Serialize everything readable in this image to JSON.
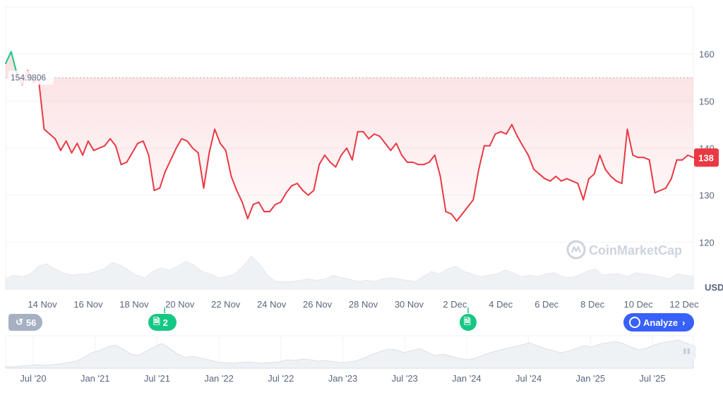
{
  "chart_data": {
    "type": "line",
    "y_unit": "USD",
    "ylim": [
      110,
      170
    ],
    "y_ticks": [
      "160",
      "150",
      "140",
      "130",
      "120"
    ],
    "reference_value": "154.9806",
    "current_value": "138",
    "x_tick_labels": [
      "14 Nov",
      "16 Nov",
      "18 Nov",
      "20 Nov",
      "22 Nov",
      "24 Nov",
      "26 Nov",
      "28 Nov",
      "30 Nov",
      "2 Dec",
      "4 Dec",
      "6 Dec",
      "8 Dec",
      "10 Dec",
      "12 Dec"
    ],
    "navigator_labels": [
      "Jul '20",
      "Jan '21",
      "Jul '21",
      "Jan '22",
      "Jul '22",
      "Jan '23",
      "Jul '23",
      "Jan '24",
      "Jul '24",
      "Jan '25",
      "Jul '25"
    ],
    "series": [
      {
        "x_start": "2025-11-13",
        "x_end": "2025-12-13",
        "values": [
          158,
          160.5,
          156,
          153.5,
          156.5,
          154,
          154.5,
          144,
          143,
          142,
          139.5,
          141.5,
          139,
          141,
          138.5,
          141.5,
          139.5,
          140,
          140.5,
          142,
          140.5,
          136.5,
          137,
          139,
          141,
          141.5,
          138.5,
          131,
          131.5,
          135,
          137.5,
          140,
          142,
          141.5,
          140,
          139,
          131.5,
          139,
          144,
          141,
          139.5,
          134,
          131,
          128.5,
          125,
          128,
          128.5,
          126.5,
          126.5,
          128,
          128.5,
          130.5,
          132,
          132.5,
          131,
          130,
          131,
          136.5,
          138.5,
          137,
          136,
          138.5,
          140,
          137.5,
          143.5,
          143.5,
          142,
          143,
          142.5,
          141,
          139.5,
          141,
          138.5,
          137,
          137,
          136.5,
          136.5,
          137,
          138.5,
          134,
          126.5,
          126,
          124.5,
          126,
          127.5,
          129,
          135.5,
          140.5,
          140.5,
          143,
          143.5,
          143,
          145,
          142.5,
          140.5,
          138.5,
          135.5,
          134.5,
          133.5,
          133,
          134,
          133,
          133.5,
          133,
          132.5,
          129,
          133.5,
          134.5,
          138.5,
          135.5,
          134,
          133,
          132.5,
          144,
          138.5,
          138,
          138,
          137.5,
          130.5,
          131,
          131.5,
          133.5,
          137.5,
          137.5,
          138.5,
          138
        ]
      }
    ],
    "volume": [
      8,
      11,
      10,
      12,
      18,
      20,
      16,
      13,
      11,
      12,
      12,
      14,
      16,
      21,
      19,
      15,
      11,
      9,
      14,
      17,
      15,
      18,
      22,
      19,
      14,
      12,
      9,
      10,
      12,
      18,
      26,
      20,
      11,
      6,
      6,
      6,
      7,
      8,
      7,
      8,
      11,
      9,
      8,
      6,
      7,
      6,
      8,
      9,
      8,
      7,
      6,
      10,
      14,
      12,
      16,
      18,
      14,
      12,
      10,
      11,
      12,
      15,
      13,
      10,
      11,
      10,
      12,
      13,
      10,
      9,
      11,
      14,
      16,
      11,
      12,
      12,
      10,
      13,
      12,
      11,
      10,
      8,
      12,
      11,
      10
    ],
    "navigator_values": [
      2,
      2,
      3,
      4,
      5,
      4,
      5,
      6,
      8,
      10,
      15,
      22,
      25,
      30,
      33,
      27,
      20,
      18,
      24,
      30,
      35,
      28,
      20,
      15,
      17,
      14,
      12,
      9,
      8,
      7,
      8,
      9,
      8,
      7,
      8,
      9,
      12,
      11,
      13,
      12,
      10,
      11,
      9,
      8,
      9,
      11,
      15,
      20,
      24,
      27,
      26,
      22,
      25,
      28,
      22,
      18,
      20,
      17,
      14,
      12,
      14,
      18,
      22,
      25,
      28,
      30,
      33,
      36,
      32,
      28,
      25,
      22,
      24,
      28,
      32,
      30,
      34,
      36,
      38,
      35,
      30,
      26,
      28,
      33,
      36,
      38,
      40,
      36,
      32
    ]
  },
  "watermark": "CoinMarketCap",
  "history_count": "56",
  "news_count": "2",
  "analyze_label": "Analyze",
  "colors": {
    "line": "#ea3943",
    "up": "#16c784",
    "badge": "#ea3943",
    "accent": "#3861fb"
  }
}
